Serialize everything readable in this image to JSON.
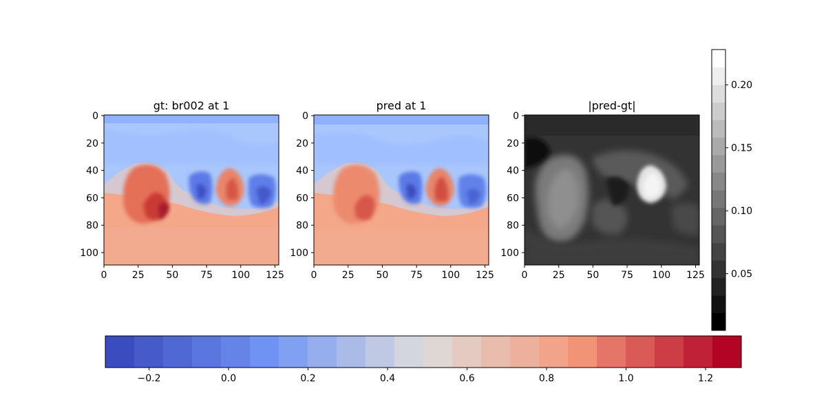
{
  "chart_data": [
    {
      "type": "heatmap",
      "title": "gt: br002 at 1",
      "colormap": "coolwarm",
      "xlim": [
        0,
        127
      ],
      "ylim": [
        109,
        0
      ],
      "x_ticks": [
        "0",
        "25",
        "50",
        "75",
        "100",
        "125"
      ],
      "y_ticks": [
        "0",
        "20",
        "40",
        "60",
        "80",
        "100"
      ]
    },
    {
      "type": "heatmap",
      "title": "pred at 1",
      "colormap": "coolwarm",
      "xlim": [
        0,
        127
      ],
      "ylim": [
        109,
        0
      ],
      "x_ticks": [
        "0",
        "25",
        "50",
        "75",
        "100",
        "125"
      ],
      "y_ticks": [
        "0",
        "20",
        "40",
        "60",
        "80",
        "100"
      ]
    },
    {
      "type": "heatmap",
      "title": "|pred-gt|",
      "colormap": "gray",
      "xlim": [
        0,
        127
      ],
      "ylim": [
        109,
        0
      ],
      "x_ticks": [
        "0",
        "25",
        "50",
        "75",
        "100",
        "125"
      ],
      "y_ticks": [
        "0",
        "20",
        "40",
        "60",
        "80",
        "100"
      ]
    }
  ],
  "colorbars": {
    "error": {
      "orientation": "vertical",
      "range": [
        0.005,
        0.228
      ],
      "levels": 16,
      "ticks": [
        {
          "label": "0.05",
          "value": 0.05
        },
        {
          "label": "0.10",
          "value": 0.1
        },
        {
          "label": "0.15",
          "value": 0.15
        },
        {
          "label": "0.20",
          "value": 0.2
        }
      ]
    },
    "field": {
      "orientation": "horizontal",
      "range": [
        -0.31,
        1.29
      ],
      "levels": 22,
      "ticks": [
        {
          "label": "−0.2",
          "value": -0.2
        },
        {
          "label": "0.0",
          "value": 0.0
        },
        {
          "label": "0.2",
          "value": 0.2
        },
        {
          "label": "0.4",
          "value": 0.4
        },
        {
          "label": "0.6",
          "value": 0.6
        },
        {
          "label": "0.8",
          "value": 0.8
        },
        {
          "label": "1.0",
          "value": 1.0
        },
        {
          "label": "1.2",
          "value": 1.2
        }
      ]
    }
  }
}
